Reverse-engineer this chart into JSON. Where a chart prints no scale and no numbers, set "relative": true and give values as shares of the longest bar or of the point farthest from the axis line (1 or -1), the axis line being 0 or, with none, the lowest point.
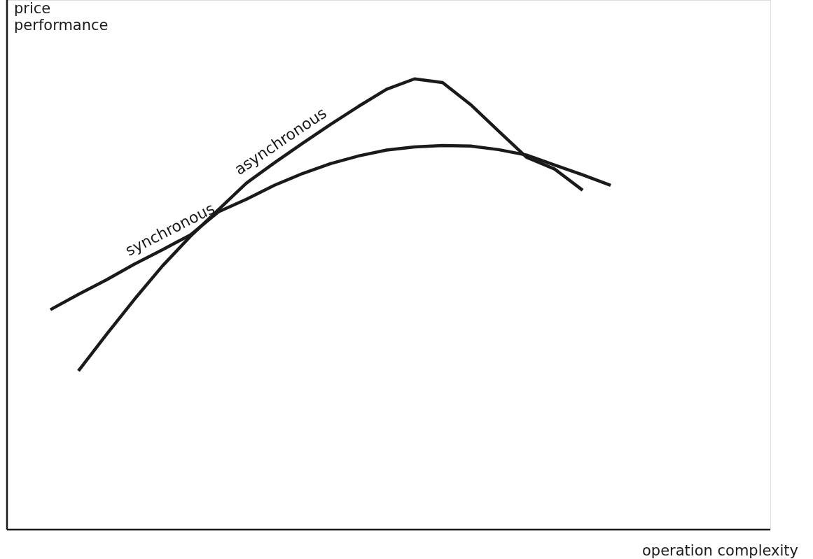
{
  "chart_data": {
    "type": "line",
    "relative": true,
    "xlabel": "operation complexity",
    "ylabel": "price performance",
    "categories": [
      null,
      null,
      null,
      null,
      null,
      null,
      null,
      null,
      null,
      null,
      null,
      null,
      null,
      null,
      null,
      null,
      null,
      null,
      null,
      null,
      null,
      null,
      null,
      null,
      null,
      null,
      null
    ],
    "series": [
      {
        "name": "synchronous",
        "color": "#1a1a1a",
        "values": [
          null,
          0.488,
          0.522,
          0.554,
          0.589,
          0.621,
          0.654,
          0.705,
          0.733,
          0.764,
          0.79,
          0.812,
          0.829,
          0.842,
          0.849,
          0.852,
          0.851,
          0.843,
          0.831,
          0.809,
          0.787,
          0.764,
          null,
          null,
          null,
          null,
          null
        ]
      },
      {
        "name": "asynchronous",
        "color": "#1a1a1a",
        "values": [
          null,
          null,
          0.352,
          0.433,
          0.511,
          0.585,
          0.651,
          0.71,
          0.769,
          0.814,
          0.857,
          0.899,
          0.939,
          0.977,
          1.0,
          0.992,
          0.943,
          0.884,
          0.826,
          0.8,
          0.753,
          null,
          null,
          null,
          null,
          null,
          null
        ]
      }
    ]
  }
}
